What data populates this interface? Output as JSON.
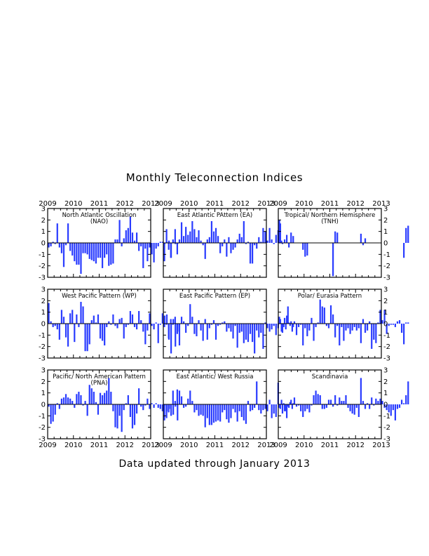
{
  "title": "Monthly Teleconnection Indices",
  "footer": "Data updated through January 2013",
  "colors": {
    "bar": "#2a3cff",
    "axis": "#000000",
    "zero_line": "#000000",
    "background": "#ffffff"
  },
  "layout_grid": {
    "rows": 3,
    "cols": 3,
    "year_labels_top_row": true,
    "year_labels_bottom_row": true,
    "y_labels_left_col": true,
    "y_labels_right_col": true
  },
  "chart_data": [
    {
      "type": "bar",
      "title": "North Atlantic Oscillation (NAO)",
      "xlabel": "",
      "ylabel": "",
      "ylim": [
        -3,
        3
      ],
      "xlim": [
        2009,
        2013
      ],
      "x_ticks": [
        "2009",
        "2010",
        "2011",
        "2012",
        "2013"
      ],
      "y_ticks": [
        "3",
        "2",
        "1",
        "0",
        "-1",
        "-2",
        "-3"
      ],
      "values": [
        -0.4,
        -0.3,
        0.1,
        -0.1,
        1.7,
        -0.4,
        -0.9,
        -2.1,
        -0.2,
        1.7,
        -0.7,
        -1.1,
        -1.6,
        -1.9,
        -1.9,
        -2.7,
        -0.9,
        -0.9,
        -1.0,
        -1.4,
        -1.5,
        -1.6,
        -1.8,
        -1.3,
        -1.3,
        -2.2,
        -1.3,
        -1.0,
        -2.0,
        -1.9,
        -1.8,
        0.3,
        0.3,
        2.0,
        -0.3,
        0.4,
        1.1,
        1.3,
        2.3,
        0.9,
        0.2,
        0.9,
        -0.7,
        -0.3,
        -2.2,
        -0.5,
        -1.6,
        -0.4,
        -1.0,
        -1.7,
        -0.5,
        -0.3,
        0.1,
        0.1,
        -0.1,
        0.1,
        0.2,
        -1.3,
        0.1,
        -0.1,
        -0.1
      ]
    },
    {
      "type": "bar",
      "title": "East Atlantic PAttern (EA)",
      "xlabel": "",
      "ylabel": "",
      "ylim": [
        -3,
        3
      ],
      "xlim": [
        2009,
        2013
      ],
      "x_ticks": [
        "2009",
        "2010",
        "2011",
        "2012",
        "2013"
      ],
      "y_ticks": [
        "3",
        "2",
        "1",
        "0",
        "-1",
        "-2",
        "-3"
      ],
      "values": [
        -1.6,
        1.2,
        -0.6,
        -1.3,
        0.3,
        1.2,
        -1.0,
        0.3,
        1.8,
        0.6,
        1.4,
        0.7,
        1.0,
        1.9,
        1.2,
        0.5,
        1.1,
        0.2,
        -0.2,
        -1.4,
        0.3,
        0.5,
        1.9,
        1.0,
        1.3,
        0.6,
        -0.9,
        -0.3,
        0.3,
        -1.2,
        0.5,
        -0.9,
        -0.6,
        -0.4,
        0.3,
        0.8,
        0.5,
        1.9,
        -0.1,
        0.1,
        -1.8,
        -1.8,
        -0.2,
        -0.5,
        0.5,
        0.1,
        1.3,
        1.0,
        0.2,
        1.3,
        0.3,
        -0.1,
        0.7,
        1.1,
        1.7,
        -0.1,
        0.3,
        0.7,
        -0.4,
        0.9,
        0.6
      ]
    },
    {
      "type": "bar",
      "title": "Tropical/ Northern Hemisphere (TNH)",
      "xlabel": "",
      "ylabel": "",
      "ylim": [
        -3,
        3
      ],
      "xlim": [
        2009,
        2013
      ],
      "x_ticks": [
        "2009",
        "2010",
        "2011",
        "2012",
        "2013"
      ],
      "y_ticks": [
        "3",
        "2",
        "1",
        "0",
        "-1",
        "-2",
        "-3"
      ],
      "values": [
        2.0,
        0.2,
        0,
        0,
        0,
        0,
        0,
        0,
        0,
        0,
        0,
        -0.6,
        -1.2,
        -1.1,
        0,
        0,
        0,
        0,
        0,
        0,
        0,
        0,
        0,
        0,
        0,
        -2.9,
        1.0,
        0.9,
        0,
        0,
        0,
        0,
        0,
        0,
        0,
        0,
        0,
        0,
        0.8,
        -0.2,
        0.4,
        0,
        0,
        0,
        0,
        0,
        0,
        0,
        0,
        0,
        0,
        0,
        0,
        0,
        0,
        0,
        0,
        0,
        -1.3,
        1.3,
        1.5
      ]
    },
    {
      "type": "bar",
      "title": "West Pacific Pattern (WP)",
      "xlabel": "",
      "ylabel": "",
      "ylim": [
        -3,
        3
      ],
      "xlim": [
        2009,
        2013
      ],
      "x_ticks": [
        "2009",
        "2010",
        "2011",
        "2012",
        "2013"
      ],
      "y_ticks": [
        "3",
        "2",
        "1",
        "0",
        "-1",
        "-2",
        "-3"
      ],
      "values": [
        1.8,
        0.2,
        -0.3,
        -0.2,
        -0.5,
        -1.4,
        1.2,
        0.6,
        -1.2,
        -2.0,
        0.9,
        1.2,
        -1.6,
        0.8,
        -0.3,
        1.9,
        1.5,
        -2.4,
        -2.4,
        -1.8,
        0.3,
        0.7,
        0.1,
        0.8,
        -1.3,
        -1.5,
        -1.9,
        -0.3,
        0.2,
        -0.1,
        0.8,
        -0.2,
        -0.4,
        0.4,
        0.5,
        -1.3,
        -0.3,
        -0.1,
        1.1,
        0.8,
        -0.3,
        -0.5,
        1.1,
        0.3,
        -0.7,
        -1.8,
        -0.6,
        0.9,
        -0.2,
        -0.5,
        0.1,
        -1.7,
        -0.1,
        0.9,
        0.7,
        0.8,
        -1.4,
        -2.6,
        0.4,
        -2.0,
        -0.7
      ]
    },
    {
      "type": "bar",
      "title": "East Pacific Pattern (EP)",
      "xlabel": "",
      "ylabel": "",
      "ylim": [
        -3,
        3
      ],
      "xlim": [
        2009,
        2013
      ],
      "x_ticks": [
        "2009",
        "2010",
        "2011",
        "2012",
        "2013"
      ],
      "y_ticks": [
        "3",
        "2",
        "1",
        "0",
        "-1",
        "-2",
        "-3"
      ],
      "values": [
        -0.3,
        -0.1,
        -1.3,
        0.4,
        -0.1,
        0.6,
        -0.9,
        -1.9,
        0.6,
        0.2,
        -0.8,
        -0.2,
        1.7,
        0.6,
        -0.9,
        -1.1,
        0.3,
        -0.6,
        -1.5,
        0.4,
        -1.4,
        -0.4,
        -0.1,
        0.3,
        -1.4,
        -0.2,
        -0.1,
        0.1,
        0.2,
        -0.7,
        -0.4,
        -0.7,
        -1.3,
        -0.2,
        -2.1,
        -0.8,
        -0.7,
        -1.7,
        -1.4,
        -1.6,
        -0.9,
        -1.6,
        -2.6,
        -0.6,
        -1.2,
        -0.8,
        -2.2,
        0.1,
        -0.4,
        -0.7,
        -0.5,
        -0.2,
        -1.0,
        -0.4,
        0.4,
        -0.8,
        0.5,
        0.7,
        0.1,
        0.2,
        -0.3
      ]
    },
    {
      "type": "bar",
      "title": "Polar/ Eurasia Pattern",
      "xlabel": "",
      "ylabel": "",
      "ylim": [
        -3,
        3
      ],
      "xlim": [
        2009,
        2013
      ],
      "x_ticks": [
        "2009",
        "2010",
        "2011",
        "2012",
        "2013"
      ],
      "y_ticks": [
        "3",
        "2",
        "1",
        "0",
        "-1",
        "-2",
        "-3"
      ],
      "values": [
        0.6,
        -0.7,
        -0.3,
        -0.5,
        1.5,
        -0.2,
        -0.7,
        0.2,
        -1.0,
        -0.3,
        -0.1,
        -1.9,
        -0.4,
        -1.1,
        -0.6,
        0.5,
        -1.5,
        -0.3,
        0.1,
        2.1,
        1.5,
        1.4,
        -0.2,
        -0.4,
        1.6,
        0.8,
        -1.2,
        -0.2,
        -1.9,
        -0.3,
        -1.5,
        -0.6,
        -0.4,
        -0.9,
        -0.6,
        -0.3,
        -0.6,
        -0.4,
        -1.7,
        0.4,
        -0.8,
        -0.6,
        0.2,
        -2.2,
        -1.4,
        -1.7,
        0.1,
        1.2,
        0.3,
        1.2,
        -0.9,
        -0.2,
        -0.1,
        -0.1,
        -0.3,
        0.2,
        0.3,
        -0.8,
        -1.8,
        0.1,
        0.1
      ]
    },
    {
      "type": "bar",
      "title": "Pacific/ North American Pattern (PNA)",
      "xlabel": "",
      "ylabel": "",
      "ylim": [
        -3,
        3
      ],
      "xlim": [
        2009,
        2013
      ],
      "x_ticks": [
        "2009",
        "2010",
        "2011",
        "2012",
        "2013"
      ],
      "y_ticks": [
        "3",
        "2",
        "1",
        "0",
        "-1",
        "-2",
        "-3"
      ],
      "values": [
        -0.2,
        -1.7,
        -1.5,
        -0.9,
        0.1,
        -0.4,
        0.5,
        0.6,
        0.9,
        0.6,
        0.5,
        0.3,
        -0.3,
        0.9,
        1.1,
        0.8,
        -0.1,
        0.3,
        -1.0,
        1.7,
        1.4,
        1.1,
        0.2,
        -0.9,
        1.0,
        0.8,
        1.0,
        1.2,
        2.3,
        1.1,
        -0.6,
        -2.0,
        -2.1,
        -1.0,
        -2.4,
        -0.5,
        0.1,
        0.8,
        -1.1,
        -2.1,
        -1.8,
        -0.8,
        1.4,
        -0.2,
        -0.5,
        -0.1,
        0.5,
        -0.4,
        0.1,
        -0.3,
        0.1,
        -0.3,
        -0.4,
        -0.6,
        -0.1,
        -0.6,
        -0.4,
        -1.0,
        -0.9,
        -0.2,
        -1.4
      ]
    },
    {
      "type": "bar",
      "title": "East Atlantic/ West Russia",
      "xlabel": "",
      "ylabel": "",
      "ylim": [
        -3,
        3
      ],
      "xlim": [
        2009,
        2013
      ],
      "x_ticks": [
        "2009",
        "2010",
        "2011",
        "2012",
        "2013"
      ],
      "y_ticks": [
        "3",
        "2",
        "1",
        "0",
        "-1",
        "-2",
        "-3"
      ],
      "values": [
        -1.4,
        -1.2,
        -0.7,
        -0.4,
        1.2,
        0.3,
        1.3,
        1.2,
        0.7,
        -0.3,
        -0.2,
        0.5,
        1.2,
        0.3,
        -0.7,
        -0.5,
        -1.0,
        -0.9,
        -1.0,
        -2.0,
        -1.2,
        -1.8,
        -1.8,
        -1.6,
        -1.5,
        -1.4,
        -1.5,
        -0.7,
        -0.5,
        -1.3,
        -1.6,
        -1.2,
        -0.4,
        -0.7,
        -1.5,
        -0.6,
        -1.1,
        -1.4,
        -1.7,
        0.3,
        -0.6,
        -0.5,
        -0.3,
        2.0,
        -0.5,
        -0.8,
        -0.5,
        -0.4,
        -0.6,
        0.4,
        -1.2,
        -0.8,
        -1.1,
        1.9,
        -0.4,
        -0.8,
        -0.6,
        -1.2,
        -0.3,
        0.4,
        0.1
      ]
    },
    {
      "type": "bar",
      "title": "Scandinavia",
      "xlabel": "",
      "ylabel": "",
      "ylim": [
        -3,
        3
      ],
      "xlim": [
        2009,
        2013
      ],
      "x_ticks": [
        "2009",
        "2010",
        "2011",
        "2012",
        "2013"
      ],
      "y_ticks": [
        "3",
        "2",
        "1",
        "0",
        "-1",
        "-2",
        "-3"
      ],
      "values": [
        -0.3,
        0.4,
        0.1,
        -0.6,
        -0.2,
        0.2,
        -0.4,
        0.6,
        -0.2,
        -0.1,
        -0.6,
        -1.1,
        -0.6,
        -0.4,
        -0.7,
        -0.1,
        0.8,
        1.2,
        0.9,
        0.8,
        -0.4,
        -0.4,
        -0.3,
        0.4,
        0.4,
        -0.2,
        0.8,
        -0.1,
        0.6,
        0.3,
        0.3,
        0.8,
        -0.3,
        -0.6,
        -0.8,
        -0.9,
        -0.3,
        -1.1,
        2.3,
        0.3,
        -0.4,
        0.1,
        -0.4,
        0.6,
        -0.1,
        0.5,
        0.3,
        0.5,
        0.3,
        -0.3,
        -0.5,
        -0.7,
        -1.0,
        -0.5,
        -1.4,
        -0.4,
        -0.3,
        0.4,
        0.1,
        0.8,
        2.0
      ]
    }
  ]
}
